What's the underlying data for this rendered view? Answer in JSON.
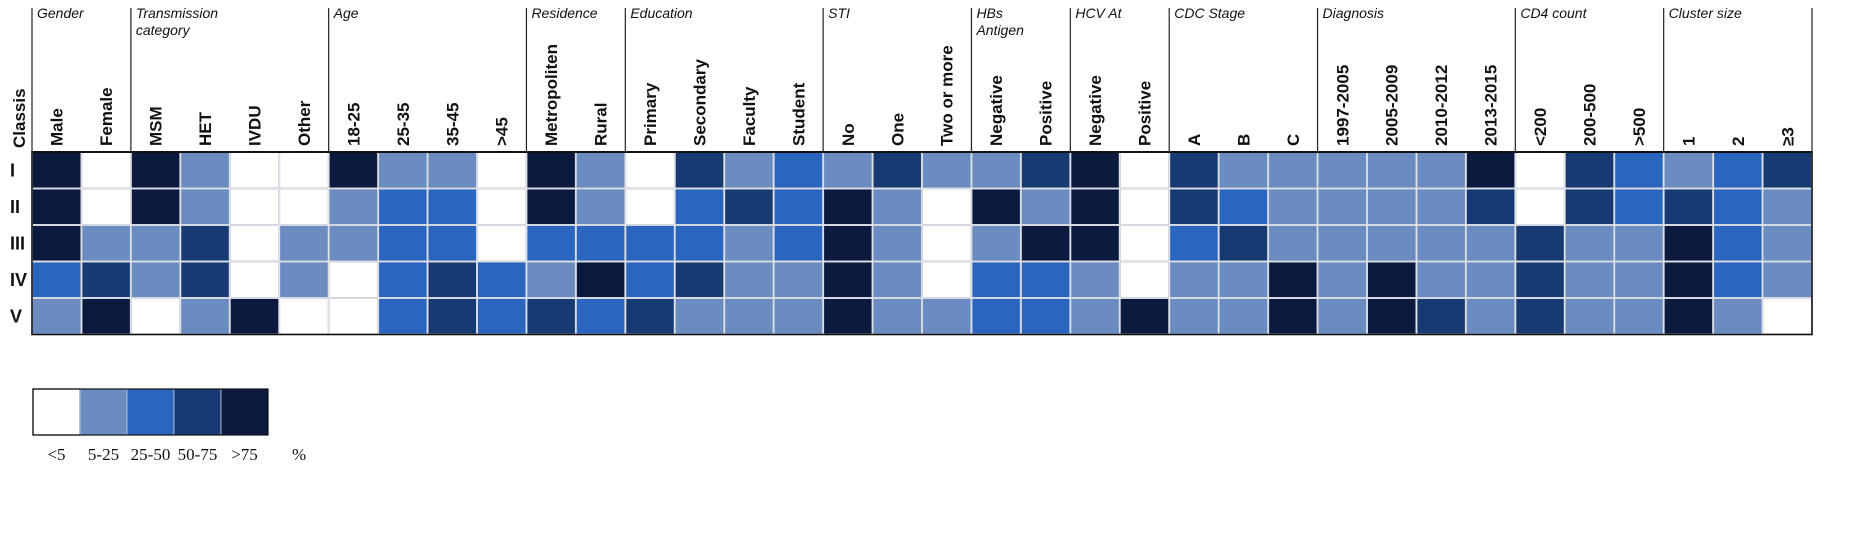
{
  "chart_data": {
    "type": "heatmap",
    "row_axis_title": "Classis",
    "rows": [
      "I",
      "II",
      "III",
      "IV",
      "V"
    ],
    "groups": [
      {
        "title": [
          "Gender"
        ],
        "columns": [
          "Male",
          "Female"
        ]
      },
      {
        "title": [
          "Transmission",
          "category"
        ],
        "columns": [
          "MSM",
          "HET",
          "IVDU",
          "Other"
        ]
      },
      {
        "title": [
          "Age"
        ],
        "columns": [
          "18-25",
          "25-35",
          "35-45",
          ">45"
        ]
      },
      {
        "title": [
          "Residence"
        ],
        "columns": [
          "Metropoliten",
          "Rural"
        ]
      },
      {
        "title": [
          "Education"
        ],
        "columns": [
          "Primary",
          "Secondary",
          "Faculty",
          "Student"
        ]
      },
      {
        "title": [
          "STI"
        ],
        "columns": [
          "No",
          "One",
          "Two or more"
        ]
      },
      {
        "title": [
          "HBs",
          "Antigen"
        ],
        "columns": [
          "Negative",
          "Positive"
        ]
      },
      {
        "title": [
          "HCV At"
        ],
        "columns": [
          "Negative",
          "Positive"
        ]
      },
      {
        "title": [
          "CDC Stage"
        ],
        "columns": [
          "A",
          "B",
          "C"
        ]
      },
      {
        "title": [
          "Diagnosis"
        ],
        "columns": [
          "1997-2005",
          "2005-2009",
          "2010-2012",
          "2013-2015"
        ]
      },
      {
        "title": [
          "CD4 count"
        ],
        "columns": [
          "<200",
          "200-500",
          ">500"
        ]
      },
      {
        "title": [
          "Cluster size"
        ],
        "columns": [
          "1",
          "2",
          "≥3"
        ]
      }
    ],
    "value_unit": "%",
    "value_categories": [
      "<5",
      "5-25",
      "25-50",
      "50-75",
      ">75"
    ],
    "category_colors": [
      "#ffffff",
      "#6a8cc0",
      "#2a66bf",
      "#183a72",
      "#0b1a3e"
    ],
    "category_matrix": [
      [
        4,
        0,
        4,
        1,
        0,
        0,
        4,
        1,
        1,
        0,
        4,
        1,
        0,
        3,
        1,
        2,
        1,
        3,
        1,
        1,
        3,
        4,
        0,
        3,
        1,
        1,
        1,
        1,
        1,
        4,
        0,
        3,
        2,
        1,
        2,
        3
      ],
      [
        4,
        0,
        4,
        1,
        0,
        0,
        1,
        2,
        2,
        0,
        4,
        1,
        0,
        2,
        3,
        2,
        4,
        1,
        0,
        4,
        1,
        4,
        0,
        3,
        2,
        1,
        1,
        1,
        1,
        3,
        0,
        3,
        2,
        3,
        2,
        1
      ],
      [
        4,
        1,
        1,
        3,
        0,
        1,
        1,
        2,
        2,
        0,
        2,
        2,
        2,
        2,
        1,
        2,
        4,
        1,
        0,
        1,
        4,
        4,
        0,
        2,
        3,
        1,
        1,
        1,
        1,
        1,
        3,
        1,
        1,
        4,
        2,
        1
      ],
      [
        2,
        3,
        1,
        3,
        0,
        1,
        0,
        2,
        3,
        2,
        1,
        4,
        2,
        3,
        1,
        1,
        4,
        1,
        0,
        2,
        2,
        1,
        0,
        1,
        1,
        4,
        1,
        4,
        1,
        1,
        3,
        1,
        1,
        4,
        2,
        1
      ],
      [
        1,
        4,
        0,
        1,
        4,
        0,
        0,
        2,
        3,
        2,
        3,
        2,
        3,
        1,
        1,
        1,
        4,
        1,
        1,
        2,
        2,
        1,
        4,
        1,
        1,
        4,
        1,
        4,
        3,
        1,
        3,
        1,
        1,
        4,
        1,
        0
      ]
    ]
  }
}
